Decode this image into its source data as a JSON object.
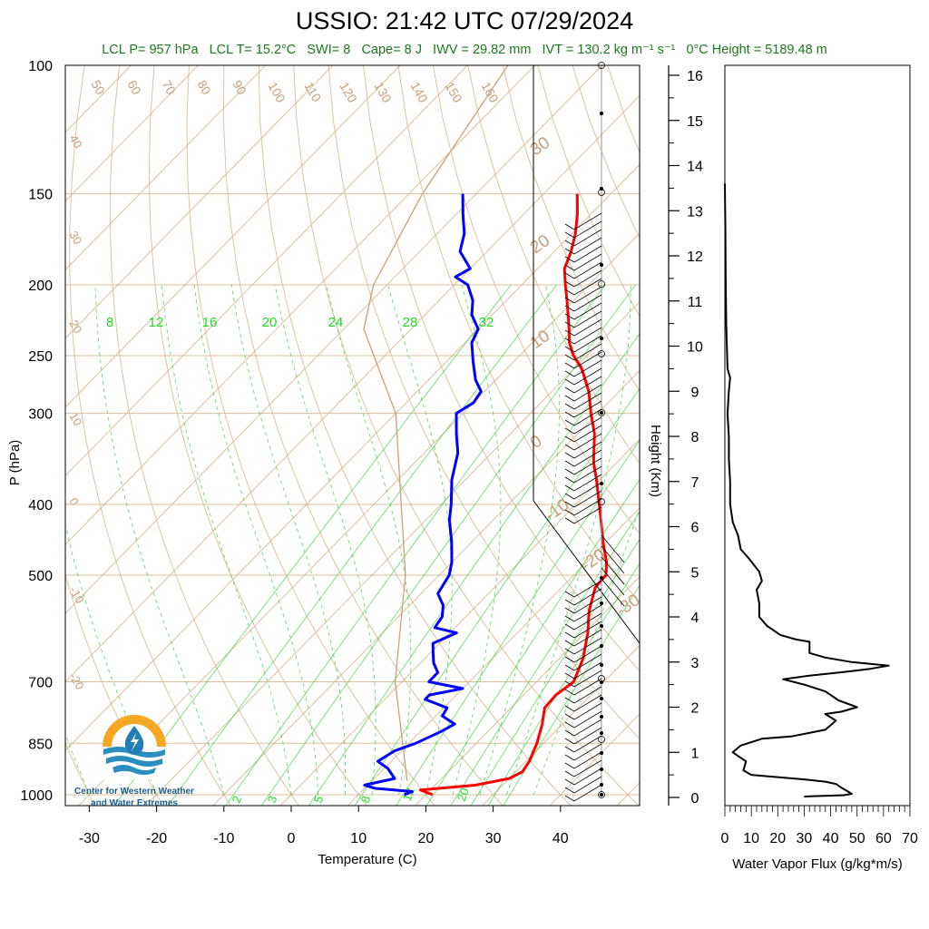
{
  "title": "USSIO: 21:42 UTC 07/29/2024",
  "diagnostics": {
    "lcl_p": "LCL P= 957 hPa",
    "lcl_t": "LCL T= 15.2°C",
    "swi": "SWI= 8",
    "cape": "Cape= 8 J",
    "iwv": "IWV = 29.82 mm",
    "ivt": "IVT = 130.2 kg m⁻¹ s⁻¹",
    "freezing_height": "0°C Height = 5189.48 m"
  },
  "logo": {
    "line1": "Center for Western Weather",
    "line2": "and Water Extremes",
    "colors": {
      "sun": "#f5a623",
      "drop": "#1f7fb5",
      "water": "#2a8fc0"
    }
  },
  "colors": {
    "temperature": "#ff0000",
    "dewpoint": "#0000ff",
    "isotherm": "#d2b48c",
    "dry_adiabat": "#d2b48c",
    "moist_adiabat": "#d2b48c",
    "mixing_ratio": "#33cc33",
    "parcel": "#c8a078",
    "diag_text": "#1a7a1a",
    "flux": "#000000"
  },
  "chart_data": [
    {
      "type": "skew-t",
      "xlabel": "Temperature (C)",
      "ylabel": "P (hPa)",
      "pressure_ticks": [
        100,
        150,
        200,
        250,
        300,
        400,
        500,
        700,
        850,
        1000
      ],
      "temperature_ticks": [
        -30,
        -20,
        -10,
        0,
        10,
        20,
        30,
        40
      ],
      "isotherm_labels": [
        50,
        60,
        70,
        80,
        90,
        100,
        110,
        120,
        130,
        140,
        150,
        160
      ],
      "dry_adiabat_labels": [
        40,
        30,
        20,
        10,
        0,
        -10,
        -20
      ],
      "moist_adiabat_labels": [
        30,
        20,
        10,
        0,
        -10,
        -20,
        -30
      ],
      "mixing_ratio_upper_labels": [
        8,
        12,
        16,
        20,
        24,
        28,
        32
      ],
      "mixing_ratio_lower_labels": [
        2,
        3,
        5,
        8,
        12,
        20
      ],
      "series": [
        {
          "name": "Temperature",
          "points": [
            [
              1000,
              21.0
            ],
            [
              985,
              18.5
            ],
            [
              970,
              26
            ],
            [
              950,
              30
            ],
            [
              930,
              31
            ],
            [
              900,
              30.5
            ],
            [
              850,
              29
            ],
            [
              800,
              27
            ],
            [
              760,
              25
            ],
            [
              730,
              24.8
            ],
            [
              700,
              25.5
            ],
            [
              650,
              23.5
            ],
            [
              600,
              20.5
            ],
            [
              560,
              17.5
            ],
            [
              520,
              15
            ],
            [
              500,
              14.8
            ],
            [
              480,
              13
            ],
            [
              450,
              9.5
            ],
            [
              420,
              6
            ],
            [
              400,
              3.5
            ],
            [
              370,
              -0.5
            ],
            [
              350,
              -3.5
            ],
            [
              320,
              -7.5
            ],
            [
              300,
              -11
            ],
            [
              280,
              -14.5
            ],
            [
              260,
              -19
            ],
            [
              250,
              -22
            ],
            [
              240,
              -24.5
            ],
            [
              230,
              -26.5
            ],
            [
              210,
              -31
            ],
            [
              200,
              -33.5
            ],
            [
              190,
              -36
            ],
            [
              180,
              -37.5
            ],
            [
              170,
              -39.5
            ],
            [
              160,
              -42
            ],
            [
              150,
              -45
            ]
          ]
        },
        {
          "name": "Dewpoint",
          "points": [
            [
              1000,
              16.8
            ],
            [
              990,
              17.5
            ],
            [
              980,
              11.5
            ],
            [
              970,
              9.5
            ],
            [
              950,
              13
            ],
            [
              920,
              10.5
            ],
            [
              900,
              8
            ],
            [
              870,
              9
            ],
            [
              850,
              11
            ],
            [
              820,
              13
            ],
            [
              800,
              14
            ],
            [
              780,
              11
            ],
            [
              760,
              10.5
            ],
            [
              740,
              6
            ],
            [
              730,
              6
            ],
            [
              715,
              10
            ],
            [
              700,
              4
            ],
            [
              680,
              4
            ],
            [
              660,
              2
            ],
            [
              640,
              0.5
            ],
            [
              620,
              -1
            ],
            [
              600,
              1
            ],
            [
              590,
              -3
            ],
            [
              570,
              -3.5
            ],
            [
              550,
              -5
            ],
            [
              530,
              -7.5
            ],
            [
              500,
              -8.5
            ],
            [
              480,
              -10
            ],
            [
              450,
              -13
            ],
            [
              420,
              -16.5
            ],
            [
              400,
              -18.5
            ],
            [
              370,
              -22
            ],
            [
              340,
              -25
            ],
            [
              320,
              -28
            ],
            [
              300,
              -31
            ],
            [
              290,
              -30
            ],
            [
              280,
              -30.5
            ],
            [
              270,
              -33
            ],
            [
              255,
              -36
            ],
            [
              240,
              -39
            ],
            [
              230,
              -40
            ],
            [
              220,
              -43
            ],
            [
              210,
              -45
            ],
            [
              200,
              -48
            ],
            [
              195,
              -51
            ],
            [
              190,
              -50
            ],
            [
              180,
              -54
            ],
            [
              170,
              -56
            ],
            [
              160,
              -59
            ],
            [
              150,
              -62
            ]
          ]
        },
        {
          "name": "Parcel",
          "points": [
            [
              957,
              15.2
            ],
            [
              700,
              -1
            ],
            [
              500,
              -15
            ],
            [
              300,
              -40
            ],
            [
              230,
              -57
            ],
            [
              200,
              -62
            ],
            [
              150,
              -68
            ],
            [
              100,
              -74
            ]
          ]
        }
      ]
    },
    {
      "type": "line",
      "xlabel": "Water Vapor Flux (g/kg*m/s)",
      "ylabel": "Height (Km)",
      "xlim": [
        0,
        70
      ],
      "ylim": [
        0,
        16.5
      ],
      "x_ticks": [
        0,
        10,
        20,
        30,
        40,
        50,
        60,
        70
      ],
      "y_ticks": [
        0,
        1,
        2,
        3,
        4,
        5,
        6,
        7,
        8,
        9,
        10,
        11,
        12,
        13,
        14,
        15,
        16
      ],
      "series": [
        {
          "name": "Water Vapor Flux",
          "points": [
            [
              30,
              0.02
            ],
            [
              45,
              0.05
            ],
            [
              48,
              0.08
            ],
            [
              46,
              0.15
            ],
            [
              44,
              0.22
            ],
            [
              42,
              0.3
            ],
            [
              38,
              0.35
            ],
            [
              30,
              0.4
            ],
            [
              20,
              0.45
            ],
            [
              10,
              0.5
            ],
            [
              7,
              0.6
            ],
            [
              8,
              0.8
            ],
            [
              3,
              1.0
            ],
            [
              6,
              1.15
            ],
            [
              14,
              1.3
            ],
            [
              25,
              1.35
            ],
            [
              38,
              1.5
            ],
            [
              42,
              1.7
            ],
            [
              38,
              1.85
            ],
            [
              44,
              1.9
            ],
            [
              50,
              2.0
            ],
            [
              43,
              2.15
            ],
            [
              38,
              2.35
            ],
            [
              30,
              2.5
            ],
            [
              22,
              2.62
            ],
            [
              32,
              2.7
            ],
            [
              45,
              2.78
            ],
            [
              55,
              2.85
            ],
            [
              62,
              2.92
            ],
            [
              48,
              3.0
            ],
            [
              38,
              3.1
            ],
            [
              32,
              3.2
            ],
            [
              32,
              3.45
            ],
            [
              27,
              3.5
            ],
            [
              21,
              3.6
            ],
            [
              16,
              3.8
            ],
            [
              13,
              4.0
            ],
            [
              13,
              4.3
            ],
            [
              12,
              4.6
            ],
            [
              14,
              4.8
            ],
            [
              13,
              5.0
            ],
            [
              9,
              5.3
            ],
            [
              6,
              5.5
            ],
            [
              5,
              5.8
            ],
            [
              3,
              6.1
            ],
            [
              2,
              6.5
            ],
            [
              2,
              7.0
            ],
            [
              1.5,
              7.5
            ],
            [
              1.5,
              8.0
            ],
            [
              1,
              8.5
            ],
            [
              1.5,
              9.0
            ],
            [
              2,
              9.3
            ],
            [
              1,
              9.5
            ],
            [
              0.5,
              10.5
            ],
            [
              0.3,
              11.5
            ],
            [
              0.2,
              12.5
            ],
            [
              0,
              13.6
            ]
          ]
        }
      ]
    }
  ]
}
